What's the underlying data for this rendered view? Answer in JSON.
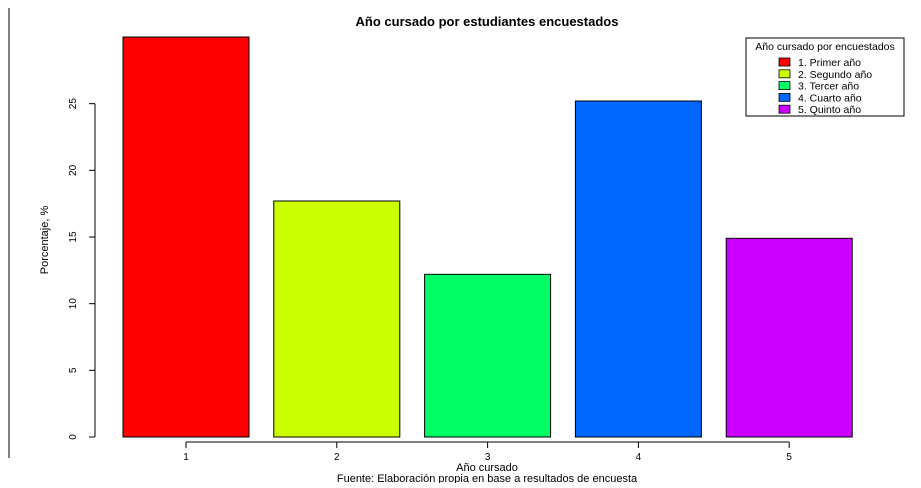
{
  "chart_data": {
    "type": "bar",
    "title": "Año cursado por estudiantes encuestados",
    "xlabel": "Año cursado",
    "ylabel": "Porcentaje, %",
    "caption": "Fuente: Elaboración propia en base a resultados de encuesta",
    "categories": [
      "1",
      "2",
      "3",
      "4",
      "5"
    ],
    "values": [
      30.0,
      17.7,
      12.2,
      25.2,
      14.9
    ],
    "colors": [
      "#FF0000",
      "#CCFF00",
      "#00FF66",
      "#0066FF",
      "#CC00FF"
    ],
    "ylim": [
      0,
      30
    ],
    "yticks": [
      "0",
      "5",
      "10",
      "15",
      "20",
      "25"
    ],
    "grid": false,
    "legend": {
      "title": "Año cursado por encuestados",
      "placement": "top-right",
      "entries": [
        "1. Primer año",
        "2. Segundo año",
        "3. Tercer año",
        "4. Cuarto año",
        "5. Quinto año"
      ]
    }
  }
}
